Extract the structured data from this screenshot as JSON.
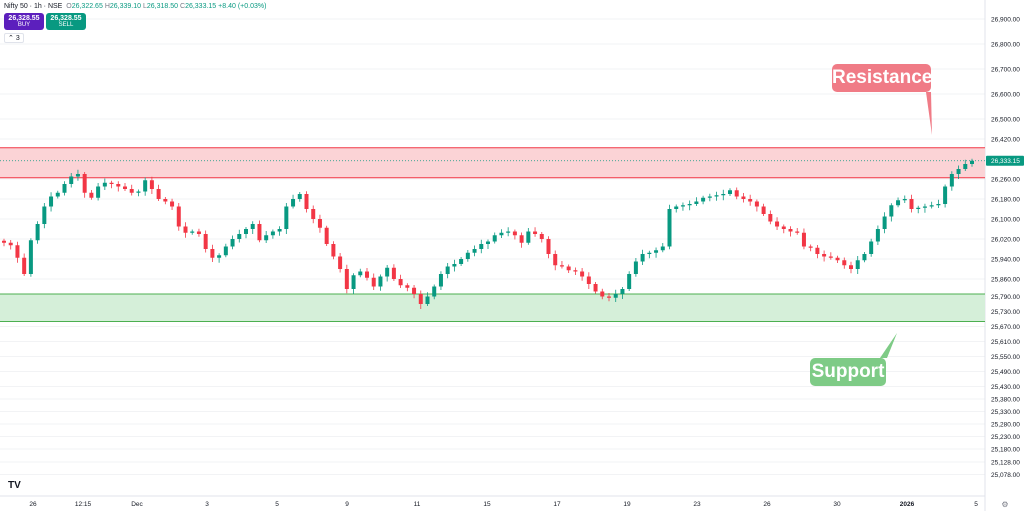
{
  "legend": {
    "symbol": "Nifty 50 · 1h · NSE",
    "o_label": "O",
    "o": "26,322.65",
    "h_label": "H",
    "h": "26,339.10",
    "l_label": "L",
    "l": "26,318.50",
    "c_label": "C",
    "c": "26,333.15",
    "change": "+8.40 (+0.03%)"
  },
  "trade": {
    "buy_price": "26,328.55",
    "buy_label": "BUY",
    "sell_price": "26,328.55",
    "sell_label": "SELL",
    "collapse_label": "3"
  },
  "logo": "TV",
  "annotations": {
    "resistance": "Resistance",
    "support": "Support"
  },
  "colors": {
    "up": "#089981",
    "down": "#f23645",
    "resistance_fill": "#fbd3d6",
    "resistance_line": "#f23645",
    "support_fill": "#d5efd9",
    "support_line": "#4caf50",
    "resistance_callout": "#f07b86",
    "support_callout": "#7ecb86"
  },
  "chart_data": {
    "type": "candlestick",
    "y_axis_position": "right",
    "ylim": [
      25050,
      26960
    ],
    "y_ticks": [
      26900,
      26800,
      26700,
      26600,
      26500,
      26420,
      26340,
      26260,
      26180,
      26100,
      26020,
      25940,
      25860,
      25790,
      25730,
      25670,
      25610,
      25550,
      25490,
      25430,
      25380,
      25330,
      25280,
      25230,
      25180,
      25128,
      25078
    ],
    "y_tick_labels": [
      "26,900.00",
      "26,800.00",
      "26,700.00",
      "26,600.00",
      "26,500.00",
      "26,420.00",
      "26,340.00",
      "26,260.00",
      "26,180.00",
      "26,100.00",
      "26,020.00",
      "25,940.00",
      "25,860.00",
      "25,790.00",
      "25,730.00",
      "25,670.00",
      "25,610.00",
      "25,550.00",
      "25,490.00",
      "25,430.00",
      "25,380.00",
      "25,330.00",
      "25,280.00",
      "25,230.00",
      "25,180.00",
      "25,128.00",
      "25,078.00"
    ],
    "x_tick_labels": [
      "26",
      "12:15",
      "Dec",
      "3",
      "5",
      "9",
      "11",
      "15",
      "17",
      "19",
      "23",
      "26",
      "30",
      "2026",
      "5"
    ],
    "last_price": 26333.15,
    "last_price_label": "26,333.15",
    "resistance_zone": [
      26265,
      26385
    ],
    "support_zone": [
      25690,
      25800
    ],
    "closes": [
      26005,
      25995,
      25945,
      25880,
      26015,
      26080,
      26150,
      26190,
      26205,
      26240,
      26270,
      26280,
      26205,
      26185,
      26230,
      26245,
      26240,
      26230,
      26220,
      26205,
      26210,
      26255,
      26220,
      26180,
      26170,
      26150,
      26070,
      26045,
      26050,
      26040,
      25980,
      25945,
      25955,
      25990,
      26020,
      26040,
      26060,
      26080,
      26015,
      26035,
      26050,
      26060,
      26150,
      26180,
      26200,
      26140,
      26100,
      26065,
      26000,
      25950,
      25900,
      25820,
      25875,
      25890,
      25865,
      25830,
      25870,
      25905,
      25860,
      25835,
      25825,
      25800,
      25760,
      25790,
      25830,
      25880,
      25910,
      25920,
      25940,
      25965,
      25980,
      26000,
      26010,
      26035,
      26045,
      26050,
      26035,
      26005,
      26050,
      26040,
      26020,
      25960,
      25915,
      25910,
      25895,
      25890,
      25870,
      25840,
      25810,
      25790,
      25785,
      25800,
      25820,
      25880,
      25930,
      25960,
      25965,
      25975,
      25990,
      26140,
      26150,
      26155,
      26160,
      26170,
      26185,
      26190,
      26195,
      26200,
      26215,
      26190,
      26180,
      26170,
      26150,
      26120,
      26090,
      26070,
      26060,
      26050,
      26045,
      25990,
      25985,
      25960,
      25950,
      25945,
      25935,
      25915,
      25900,
      25935,
      25960,
      26010,
      26060,
      26110,
      26155,
      26175,
      26180,
      26140,
      26145,
      26150,
      26155,
      26160,
      26230,
      26280,
      26300,
      26320,
      26333
    ]
  }
}
